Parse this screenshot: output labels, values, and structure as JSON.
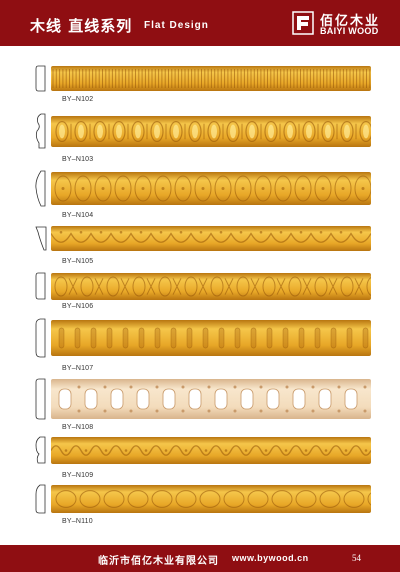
{
  "header": {
    "title_cn": "木线 直线系列",
    "title_en": "Flat Design",
    "brand_cn": "佰亿木业",
    "brand_en": "BAIYI WOOD"
  },
  "products": [
    {
      "code": "BY–N102",
      "pattern": "reeded"
    },
    {
      "code": "BY–N103",
      "pattern": "egg-and-dart"
    },
    {
      "code": "BY–N104",
      "pattern": "bead"
    },
    {
      "code": "BY–N105",
      "pattern": "scallop"
    },
    {
      "code": "BY–N106",
      "pattern": "ornament"
    },
    {
      "code": "BY–N107",
      "pattern": "flute"
    },
    {
      "code": "BY–N108",
      "pattern": "pierced"
    },
    {
      "code": "BY–N109",
      "pattern": "wave"
    },
    {
      "code": "BY–N110",
      "pattern": "oval"
    }
  ],
  "footer": {
    "company": "临沂市佰亿木业有限公司",
    "website": "www.bywood.cn",
    "page_number": "54"
  },
  "colors": {
    "header_bg": "#8f0e12",
    "wood_light": "#f5c64a",
    "wood_mid": "#e8a727",
    "wood_dark": "#b87510",
    "wood_pale": "#f3dcbc"
  }
}
